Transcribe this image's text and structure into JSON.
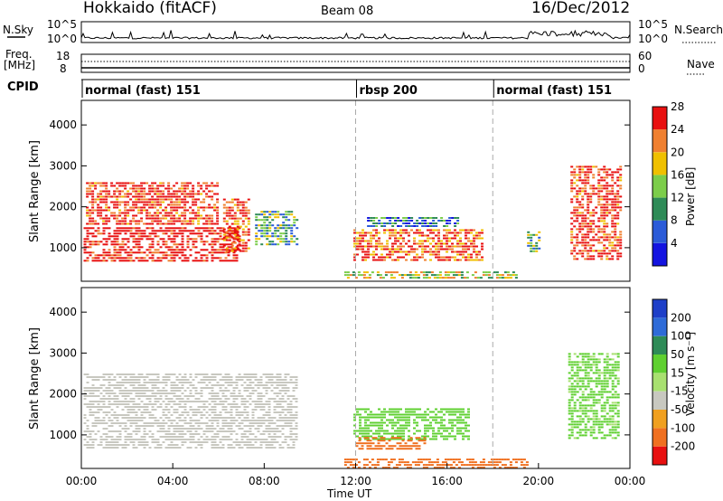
{
  "header": {
    "station": "Hokkaido (fitACF)",
    "beam": "Beam 08",
    "date": "16/Dec/2012"
  },
  "top_panels": {
    "nsky_label": "N.Sky",
    "nsky_ticks": [
      "10^5",
      "10^0"
    ],
    "nsearch_label": "N.Search",
    "nsearch_ticks": [
      "10^5",
      "10^0"
    ],
    "freq_label_1": "Freq.",
    "freq_label_2": "[MHz]",
    "freq_ticks": [
      "18",
      "8"
    ],
    "nave_label": "Nave",
    "nave_ticks": [
      "60",
      "0"
    ],
    "cpid_label": "CPID",
    "cpid_modes": [
      {
        "label": "normal (fast) 151",
        "start_hour": 0
      },
      {
        "label": "rbsp 200",
        "start_hour": 12
      },
      {
        "label": "normal (fast) 151",
        "start_hour": 18
      }
    ]
  },
  "chart_data": [
    {
      "type": "heatmap",
      "title": "Power",
      "ylabel": "Slant Range [km]",
      "ylim": [
        180,
        4600
      ],
      "yticks": [
        "1000",
        "2000",
        "3000",
        "4000"
      ],
      "xlim": [
        0,
        24
      ],
      "colorbar_label": "Power [dB]",
      "colorbar_ticks": [
        "4",
        "8",
        "12",
        "16",
        "20",
        "24",
        "28"
      ],
      "colorbar_colors": [
        "#1414e0",
        "#2b5bd8",
        "#2e8b57",
        "#7ccd4a",
        "#f0c000",
        "#f08030",
        "#e81010"
      ],
      "regions": [
        {
          "x0": 0.1,
          "x1": 6.9,
          "y0": 700,
          "y1": 1500,
          "value": 28
        },
        {
          "x0": 0.2,
          "x1": 6.0,
          "y0": 1600,
          "y1": 2600,
          "value": 26
        },
        {
          "x0": 6.2,
          "x1": 7.3,
          "y0": 900,
          "y1": 2200,
          "value": 24
        },
        {
          "x0": 7.6,
          "x1": 9.4,
          "y0": 1100,
          "y1": 1900,
          "value": 12
        },
        {
          "x0": 11.9,
          "x1": 17.5,
          "y0": 700,
          "y1": 1450,
          "value": 24
        },
        {
          "x0": 12.5,
          "x1": 16.5,
          "y0": 1500,
          "y1": 1750,
          "value": 8
        },
        {
          "x0": 11.5,
          "x1": 19.0,
          "y0": 250,
          "y1": 420,
          "value": 16
        },
        {
          "x0": 19.5,
          "x1": 20.0,
          "y0": 900,
          "y1": 1400,
          "value": 12
        },
        {
          "x0": 21.4,
          "x1": 23.6,
          "y0": 700,
          "y1": 3000,
          "value": 26
        }
      ]
    },
    {
      "type": "heatmap",
      "title": "Velocity",
      "ylabel": "Slant Range [km]",
      "ylim": [
        180,
        4600
      ],
      "yticks": [
        "1000",
        "2000",
        "3000",
        "4000"
      ],
      "xlim": [
        0,
        24
      ],
      "xticks": [
        "00:00",
        "04:00",
        "08:00",
        "12:00",
        "16:00",
        "20:00",
        "00:00"
      ],
      "xlabel": "Time UT",
      "colorbar_label": "Velocity [m s⁻¹]",
      "colorbar_ticks": [
        "200",
        "100",
        "50",
        "15",
        "-15",
        "-50",
        "-100",
        "-200"
      ],
      "colorbar_colors": [
        "#1e3fc8",
        "#2e6bd8",
        "#2e8b57",
        "#5fd030",
        "#a8e070",
        "#c8c8c0",
        "#f0a020",
        "#f07020",
        "#e81010"
      ],
      "regions": [
        {
          "x0": 0.1,
          "x1": 9.4,
          "y0": 700,
          "y1": 2500,
          "value": 0
        },
        {
          "x0": 11.9,
          "x1": 17.0,
          "y0": 900,
          "y1": 1650,
          "value": 30
        },
        {
          "x0": 12.0,
          "x1": 15.0,
          "y0": 650,
          "y1": 950,
          "value": -60
        },
        {
          "x0": 11.5,
          "x1": 19.5,
          "y0": 200,
          "y1": 420,
          "value": -80
        },
        {
          "x0": 21.3,
          "x1": 23.5,
          "y0": 900,
          "y1": 3000,
          "value": 25
        }
      ]
    }
  ]
}
